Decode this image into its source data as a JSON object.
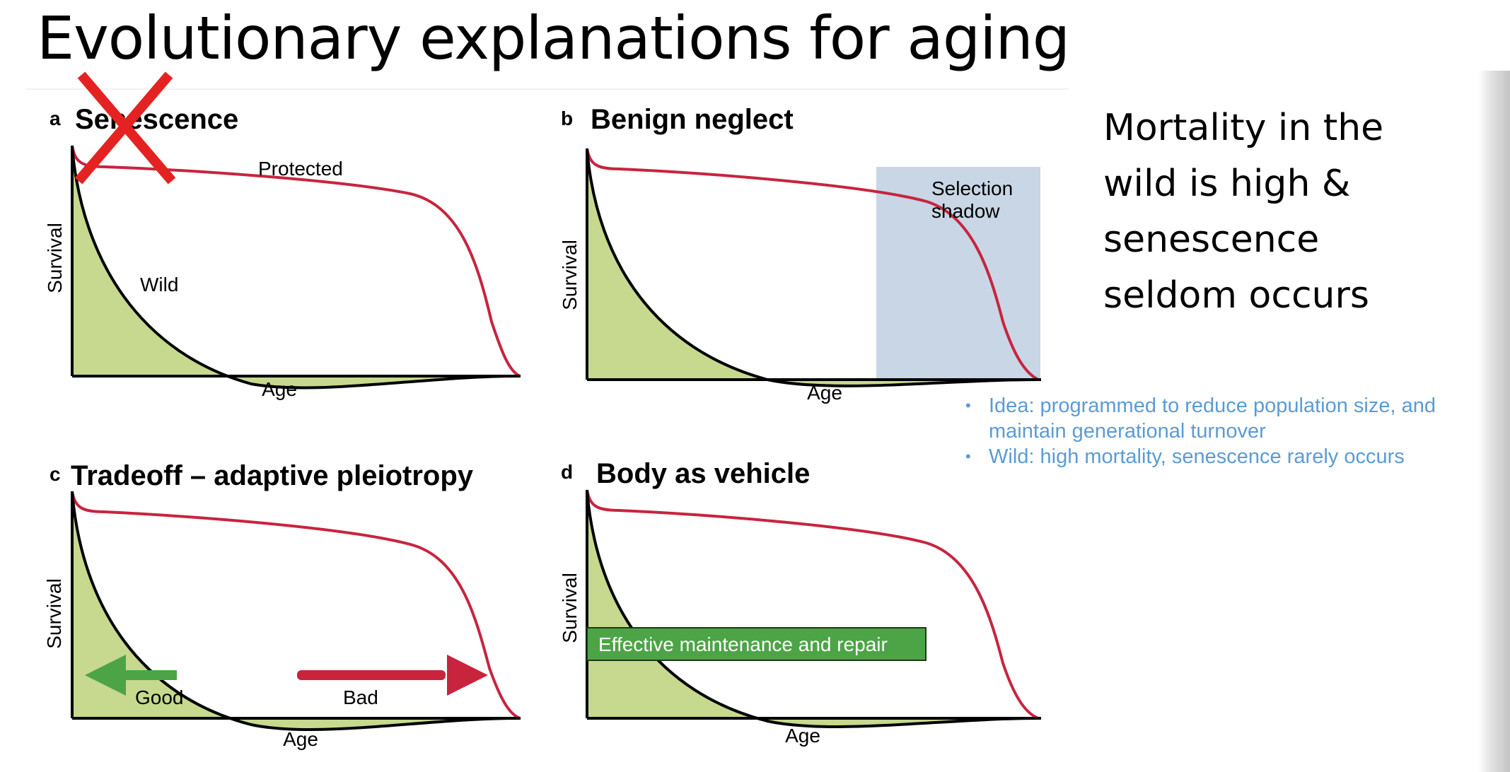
{
  "slide": {
    "title": "Evolutionary explanations for aging"
  },
  "panels": [
    {
      "id": "a",
      "letter": "a",
      "title": "Senescence",
      "xlabel": "Age",
      "ylabel": "Survival",
      "labels": {
        "protected": "Protected",
        "wild": "Wild"
      },
      "crossed_out": true
    },
    {
      "id": "b",
      "letter": "b",
      "title": "Benign neglect",
      "xlabel": "Age",
      "ylabel": "Survival",
      "labels": {
        "shadow_line1": "Selection",
        "shadow_line2": "shadow"
      }
    },
    {
      "id": "c",
      "letter": "c",
      "title": "Tradeoff – adaptive pleiotropy",
      "xlabel": "Age",
      "ylabel": "Survival",
      "labels": {
        "good": "Good",
        "bad": "Bad"
      }
    },
    {
      "id": "d",
      "letter": "d",
      "title": "Body as vehicle",
      "xlabel": "Age",
      "ylabel": "Survival",
      "labels": {
        "maintenance": "Effective maintenance and repair"
      }
    }
  ],
  "side_text": "Mortality in the wild is high & senescence seldom occurs",
  "notes": [
    "Idea: programmed to reduce population size, and maintain generational turnover",
    "Wild: high mortality, senescence rarely occurs"
  ],
  "colors": {
    "protected_curve": "#c8243e",
    "wild_fill": "#c6d98e",
    "wild_curve": "#000000",
    "selection_shadow": "#c8d6e5",
    "good_arrow": "#4da446",
    "bad_arrow": "#c8243e",
    "maintenance_box": "#4da446",
    "cross_mark": "#e52222",
    "notes_text": "#5b9bd5"
  }
}
